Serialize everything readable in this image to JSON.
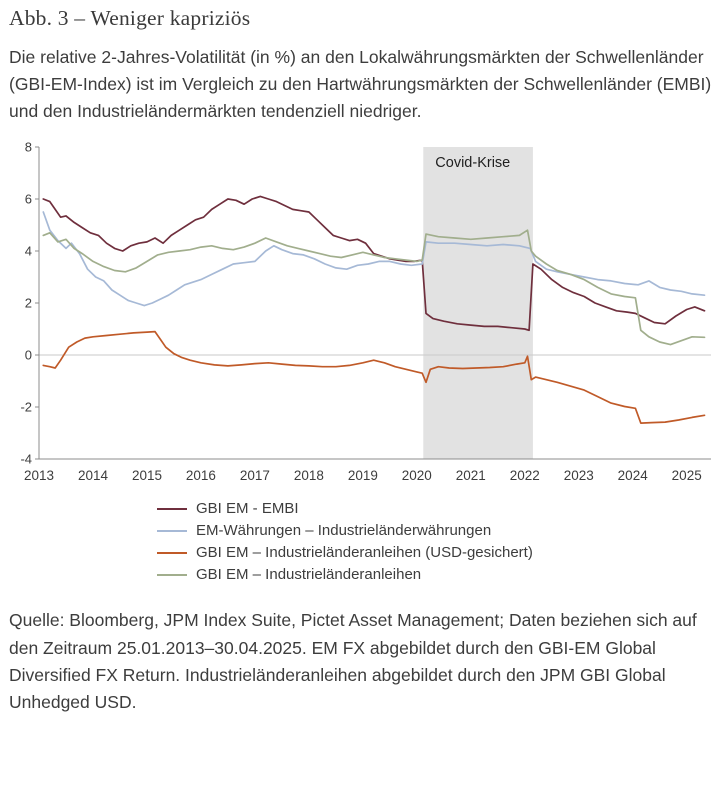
{
  "header": {
    "title": "Abb. 3 – Weniger kapriziös",
    "description": "Die relative 2-Jahres-Volatilität (in %) an den Lokalwährungsmärkten der Schwellenländer (GBI-EM-Index) ist im Vergleich zu den Hartwährungsmärkten der Schwellenländer (EMBI) und den Industrieländermärkten tendenziell niedriger."
  },
  "chart_data": {
    "type": "line",
    "title": "",
    "xlabel": "",
    "ylabel": "",
    "x_range": [
      2013.0,
      2025.45
    ],
    "ylim": [
      -4,
      8
    ],
    "y_ticks": [
      8,
      6,
      4,
      2,
      0,
      -2,
      -4
    ],
    "x_ticks": [
      2013,
      2014,
      2015,
      2016,
      2017,
      2018,
      2019,
      2020,
      2021,
      2022,
      2023,
      2024,
      2025
    ],
    "grid": "zero-line-only",
    "legend_position": "bottom-left",
    "annotation": {
      "label": "Covid-Krise",
      "x_start": 2020.12,
      "x_end": 2022.15
    },
    "colors": {
      "band": "#e2e2e2",
      "axis": "#8c8c8c",
      "zero_line": "#c9c9c9",
      "tick_text": "#3d3d3d",
      "annotation_text": "#1f1f1f"
    },
    "series": [
      {
        "name": "GBI EM - EMBI",
        "color": "#6f2f3d",
        "x": [
          2013.08,
          2013.2,
          2013.3,
          2013.4,
          2013.5,
          2013.65,
          2013.8,
          2013.95,
          2014.1,
          2014.25,
          2014.4,
          2014.55,
          2014.7,
          2014.85,
          2015.0,
          2015.15,
          2015.3,
          2015.45,
          2015.6,
          2015.75,
          2015.9,
          2016.05,
          2016.2,
          2016.35,
          2016.5,
          2016.65,
          2016.8,
          2016.95,
          2017.1,
          2017.25,
          2017.4,
          2017.55,
          2017.7,
          2017.85,
          2018.0,
          2018.15,
          2018.3,
          2018.45,
          2018.6,
          2018.75,
          2018.9,
          2019.05,
          2019.2,
          2019.35,
          2019.5,
          2019.65,
          2019.8,
          2019.95,
          2020.1,
          2020.17,
          2020.3,
          2020.5,
          2020.75,
          2021.0,
          2021.25,
          2021.5,
          2021.75,
          2022.0,
          2022.08,
          2022.15,
          2022.3,
          2022.5,
          2022.7,
          2022.9,
          2023.1,
          2023.3,
          2023.5,
          2023.7,
          2023.9,
          2024.05,
          2024.2,
          2024.4,
          2024.6,
          2024.8,
          2025.0,
          2025.15,
          2025.33
        ],
        "values": [
          6.0,
          5.9,
          5.6,
          5.3,
          5.35,
          5.1,
          4.9,
          4.7,
          4.6,
          4.3,
          4.1,
          4.0,
          4.2,
          4.3,
          4.35,
          4.5,
          4.3,
          4.6,
          4.8,
          5.0,
          5.2,
          5.3,
          5.6,
          5.8,
          6.0,
          5.95,
          5.8,
          6.0,
          6.1,
          6.0,
          5.9,
          5.75,
          5.6,
          5.55,
          5.5,
          5.2,
          4.9,
          4.6,
          4.5,
          4.4,
          4.45,
          4.3,
          3.9,
          3.8,
          3.7,
          3.65,
          3.6,
          3.6,
          3.65,
          1.6,
          1.4,
          1.3,
          1.2,
          1.15,
          1.1,
          1.1,
          1.05,
          1.0,
          0.95,
          3.5,
          3.3,
          2.9,
          2.6,
          2.4,
          2.25,
          2.0,
          1.85,
          1.7,
          1.65,
          1.6,
          1.45,
          1.25,
          1.2,
          1.5,
          1.75,
          1.85,
          1.7
        ]
      },
      {
        "name": "EM-Währungen – Industrieländerwährungen",
        "color": "#a6b9d6",
        "x": [
          2013.08,
          2013.2,
          2013.35,
          2013.5,
          2013.6,
          2013.75,
          2013.9,
          2014.05,
          2014.2,
          2014.35,
          2014.5,
          2014.65,
          2014.8,
          2014.95,
          2015.1,
          2015.25,
          2015.4,
          2015.55,
          2015.7,
          2015.85,
          2016.0,
          2016.2,
          2016.4,
          2016.6,
          2016.8,
          2017.0,
          2017.2,
          2017.35,
          2017.5,
          2017.7,
          2017.9,
          2018.1,
          2018.3,
          2018.5,
          2018.7,
          2018.9,
          2019.1,
          2019.3,
          2019.5,
          2019.7,
          2019.9,
          2020.1,
          2020.17,
          2020.4,
          2020.7,
          2021.0,
          2021.3,
          2021.6,
          2021.9,
          2022.1,
          2022.2,
          2022.4,
          2022.6,
          2022.85,
          2023.1,
          2023.35,
          2023.6,
          2023.85,
          2024.1,
          2024.3,
          2024.5,
          2024.7,
          2024.9,
          2025.1,
          2025.33
        ],
        "values": [
          5.5,
          4.8,
          4.4,
          4.1,
          4.3,
          3.9,
          3.3,
          3.0,
          2.85,
          2.5,
          2.3,
          2.1,
          2.0,
          1.9,
          2.0,
          2.15,
          2.3,
          2.5,
          2.7,
          2.8,
          2.9,
          3.1,
          3.3,
          3.5,
          3.55,
          3.6,
          4.0,
          4.2,
          4.05,
          3.9,
          3.85,
          3.7,
          3.5,
          3.35,
          3.3,
          3.45,
          3.5,
          3.6,
          3.6,
          3.5,
          3.45,
          3.5,
          4.35,
          4.3,
          4.3,
          4.25,
          4.2,
          4.25,
          4.2,
          4.1,
          3.6,
          3.3,
          3.2,
          3.1,
          3.0,
          2.9,
          2.85,
          2.75,
          2.7,
          2.85,
          2.6,
          2.5,
          2.45,
          2.35,
          2.3
        ]
      },
      {
        "name": "GBI EM – Industrieländeranleihen (USD-gesichert)",
        "color": "#c05a28",
        "x": [
          2013.08,
          2013.2,
          2013.3,
          2013.4,
          2013.55,
          2013.7,
          2013.85,
          2014.0,
          2014.25,
          2014.5,
          2014.75,
          2015.0,
          2015.15,
          2015.25,
          2015.35,
          2015.5,
          2015.65,
          2015.8,
          2016.0,
          2016.25,
          2016.5,
          2016.75,
          2017.0,
          2017.25,
          2017.5,
          2017.75,
          2018.0,
          2018.25,
          2018.5,
          2018.75,
          2019.0,
          2019.2,
          2019.4,
          2019.6,
          2019.8,
          2020.0,
          2020.1,
          2020.17,
          2020.25,
          2020.4,
          2020.6,
          2020.85,
          2021.1,
          2021.35,
          2021.6,
          2021.85,
          2022.0,
          2022.05,
          2022.12,
          2022.2,
          2022.4,
          2022.6,
          2022.85,
          2023.1,
          2023.35,
          2023.6,
          2023.85,
          2024.05,
          2024.15,
          2024.35,
          2024.6,
          2024.85,
          2025.1,
          2025.33
        ],
        "values": [
          -0.4,
          -0.45,
          -0.5,
          -0.2,
          0.3,
          0.5,
          0.65,
          0.7,
          0.75,
          0.8,
          0.85,
          0.88,
          0.9,
          0.6,
          0.3,
          0.05,
          -0.1,
          -0.2,
          -0.3,
          -0.38,
          -0.42,
          -0.38,
          -0.33,
          -0.3,
          -0.35,
          -0.4,
          -0.42,
          -0.45,
          -0.45,
          -0.4,
          -0.3,
          -0.2,
          -0.3,
          -0.45,
          -0.55,
          -0.65,
          -0.7,
          -1.05,
          -0.55,
          -0.45,
          -0.5,
          -0.52,
          -0.5,
          -0.48,
          -0.45,
          -0.35,
          -0.3,
          -0.05,
          -0.95,
          -0.85,
          -0.95,
          -1.05,
          -1.2,
          -1.35,
          -1.6,
          -1.85,
          -1.98,
          -2.05,
          -2.62,
          -2.6,
          -2.58,
          -2.5,
          -2.4,
          -2.32
        ]
      },
      {
        "name": "GBI EM – Industrieländeranleihen",
        "color": "#a1ae8d",
        "x": [
          2013.08,
          2013.2,
          2013.35,
          2013.5,
          2013.65,
          2013.8,
          2014.0,
          2014.2,
          2014.4,
          2014.6,
          2014.8,
          2015.0,
          2015.2,
          2015.4,
          2015.6,
          2015.8,
          2016.0,
          2016.2,
          2016.4,
          2016.6,
          2016.8,
          2017.0,
          2017.2,
          2017.4,
          2017.6,
          2017.8,
          2018.0,
          2018.2,
          2018.4,
          2018.6,
          2018.8,
          2019.0,
          2019.2,
          2019.4,
          2019.6,
          2019.8,
          2020.0,
          2020.1,
          2020.17,
          2020.4,
          2020.7,
          2021.0,
          2021.3,
          2021.6,
          2021.9,
          2022.05,
          2022.12,
          2022.2,
          2022.4,
          2022.6,
          2022.85,
          2023.1,
          2023.35,
          2023.6,
          2023.85,
          2024.05,
          2024.15,
          2024.3,
          2024.5,
          2024.7,
          2024.9,
          2025.1,
          2025.33
        ],
        "values": [
          4.6,
          4.7,
          4.35,
          4.45,
          4.1,
          3.9,
          3.6,
          3.4,
          3.25,
          3.2,
          3.35,
          3.6,
          3.85,
          3.95,
          4.0,
          4.05,
          4.15,
          4.2,
          4.1,
          4.05,
          4.15,
          4.3,
          4.5,
          4.35,
          4.2,
          4.1,
          4.0,
          3.9,
          3.8,
          3.75,
          3.85,
          3.95,
          3.85,
          3.75,
          3.7,
          3.65,
          3.6,
          3.65,
          4.65,
          4.55,
          4.5,
          4.45,
          4.5,
          4.55,
          4.6,
          4.8,
          4.0,
          3.8,
          3.5,
          3.25,
          3.1,
          2.9,
          2.6,
          2.35,
          2.25,
          2.2,
          0.95,
          0.7,
          0.5,
          0.4,
          0.55,
          0.7,
          0.68
        ]
      }
    ]
  },
  "footer": {
    "source": "Quelle: Bloomberg, JPM Index Suite, Pictet Asset Management; Daten beziehen sich auf den Zeitraum 25.01.2013–30.04.2025. EM FX abgebildet durch den GBI-EM Global Diversified FX Return. Industrieländeranleihen abgebildet durch den JPM GBI Global Unhedged USD."
  }
}
